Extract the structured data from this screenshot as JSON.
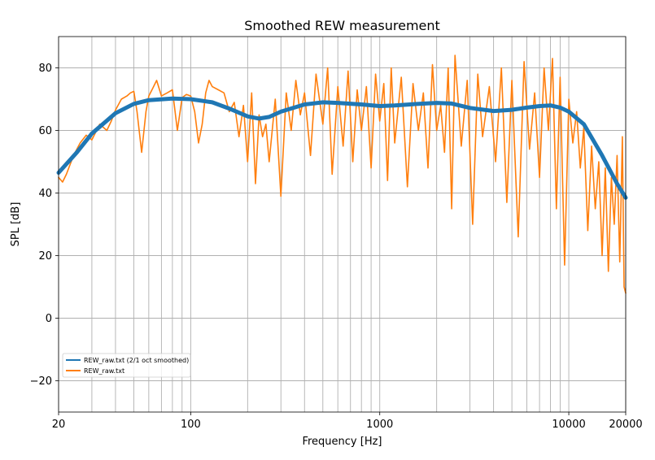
{
  "chart_data": {
    "type": "line",
    "title": "Smoothed REW measurement",
    "xlabel": "Frequency [Hz]",
    "ylabel": "SPL [dB]",
    "xscale": "log",
    "xlim": [
      20,
      20000
    ],
    "ylim": [
      -30,
      90
    ],
    "x_ticks": [
      {
        "value": 20,
        "label": "20"
      },
      {
        "value": 100,
        "label": "100"
      },
      {
        "value": 1000,
        "label": "1000"
      },
      {
        "value": 10000,
        "label": "10000"
      },
      {
        "value": 20000,
        "label": "20000"
      }
    ],
    "y_ticks": [
      {
        "value": -20,
        "label": "−20"
      },
      {
        "value": 0,
        "label": "0"
      },
      {
        "value": 20,
        "label": "20"
      },
      {
        "value": 40,
        "label": "40"
      },
      {
        "value": 60,
        "label": "60"
      },
      {
        "value": 80,
        "label": "80"
      }
    ],
    "grid": true,
    "legend_position": "lower-left",
    "series": [
      {
        "name": "REW_raw.txt (2/1 oct smoothed)",
        "color": "#1f77b4",
        "x": [
          20,
          25,
          30,
          40,
          50,
          60,
          80,
          100,
          130,
          160,
          200,
          230,
          260,
          300,
          400,
          500,
          600,
          800,
          1000,
          1200,
          1500,
          2000,
          2400,
          3000,
          4000,
          5000,
          6000,
          7000,
          8000,
          9000,
          10000,
          12000,
          15000,
          18000,
          20000
        ],
        "values": [
          46.5,
          53,
          59,
          65.5,
          68.5,
          69.7,
          70.2,
          70,
          69,
          67,
          64.5,
          63.8,
          64.3,
          66,
          68.3,
          69,
          68.8,
          68.3,
          67.8,
          68,
          68.4,
          68.8,
          68.6,
          67.2,
          66.2,
          66.6,
          67.3,
          67.8,
          68,
          67.3,
          66,
          62,
          52,
          43,
          38.5
        ]
      },
      {
        "name": "REW_raw.txt",
        "color": "#ff7f0e",
        "x": [
          20,
          21,
          22,
          24,
          26,
          28,
          30,
          33,
          36,
          38,
          40,
          43,
          46,
          48,
          50,
          52,
          55,
          58,
          60,
          63,
          66,
          70,
          75,
          80,
          85,
          90,
          95,
          100,
          105,
          110,
          115,
          120,
          125,
          130,
          140,
          150,
          160,
          170,
          180,
          190,
          200,
          210,
          220,
          230,
          240,
          250,
          260,
          280,
          300,
          320,
          340,
          360,
          380,
          400,
          430,
          460,
          500,
          530,
          560,
          600,
          640,
          680,
          720,
          760,
          800,
          850,
          900,
          950,
          1000,
          1050,
          1100,
          1150,
          1200,
          1300,
          1400,
          1500,
          1600,
          1700,
          1800,
          1900,
          2000,
          2100,
          2200,
          2300,
          2400,
          2500,
          2700,
          2900,
          3100,
          3300,
          3500,
          3800,
          4100,
          4400,
          4700,
          5000,
          5400,
          5800,
          6200,
          6600,
          7000,
          7400,
          7800,
          8200,
          8600,
          9000,
          9500,
          10000,
          10500,
          11000,
          11500,
          12000,
          12600,
          13200,
          13800,
          14400,
          15000,
          15600,
          16200,
          16800,
          17400,
          18000,
          18600,
          19200,
          19600,
          20000
        ],
        "values": [
          45,
          43.5,
          46,
          52,
          56,
          58.5,
          57,
          62,
          60,
          63,
          66.5,
          70,
          71,
          72,
          72.5,
          66,
          53,
          66,
          71,
          73.5,
          76,
          71,
          72,
          73,
          60,
          70.5,
          71.5,
          71,
          66,
          56,
          62,
          72,
          76,
          74,
          73,
          72,
          66,
          69,
          58,
          68,
          50,
          72,
          43,
          65,
          58,
          62,
          50,
          70,
          39,
          72,
          60,
          76,
          65,
          72,
          52,
          78,
          62,
          80,
          46,
          74,
          55,
          79,
          50,
          73,
          60,
          74,
          48,
          78,
          63,
          75,
          44,
          80,
          56,
          77,
          42,
          75,
          60,
          72,
          48,
          81,
          60,
          68,
          53,
          80,
          35,
          84,
          55,
          76,
          30,
          78,
          58,
          74,
          50,
          80,
          37,
          76,
          26,
          82,
          54,
          72,
          45,
          80,
          60,
          83,
          35,
          77,
          17,
          70,
          56,
          66,
          48,
          61,
          28,
          55,
          35,
          50,
          20,
          48,
          15,
          45,
          30,
          52,
          18,
          58,
          10,
          8
        ]
      }
    ]
  }
}
